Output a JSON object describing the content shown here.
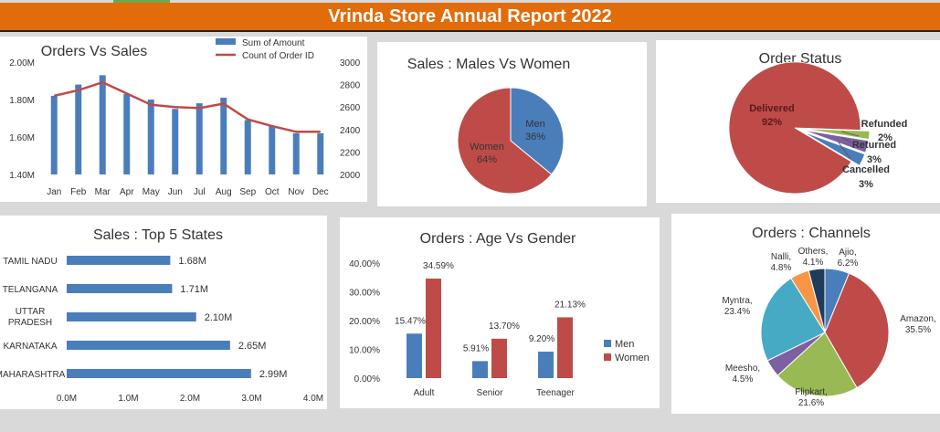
{
  "header": {
    "title": "Vrinda Store Annual Report 2022",
    "accent_color": "#e26b0a"
  },
  "colors": {
    "blue": "#4a7ebb",
    "red": "#be4b48",
    "green": "#98b954",
    "purple": "#7d60a0",
    "teal": "#46aac5",
    "orange": "#f79646",
    "navy": "#1f3c5c"
  },
  "chart_data": [
    {
      "id": "orders_vs_sales",
      "type": "bar",
      "title": "Orders Vs Sales",
      "categories": [
        "Jan",
        "Feb",
        "Mar",
        "Apr",
        "May",
        "Jun",
        "Jul",
        "Aug",
        "Sep",
        "Oct",
        "Nov",
        "Dec"
      ],
      "series": [
        {
          "name": "Sum of Amount",
          "type": "bar",
          "axis": "left",
          "values": [
            1.82,
            1.88,
            1.93,
            1.83,
            1.8,
            1.75,
            1.78,
            1.81,
            1.69,
            1.66,
            1.62,
            1.62
          ]
        },
        {
          "name": "Count of Order ID",
          "type": "line",
          "axis": "right",
          "values": [
            2700,
            2750,
            2820,
            2720,
            2620,
            2600,
            2590,
            2630,
            2490,
            2430,
            2380,
            2380
          ]
        }
      ],
      "ylim": [
        1.4,
        2.0
      ],
      "y_ticks": [
        "1.40M",
        "1.60M",
        "1.80M",
        "2.00M"
      ],
      "y2lim": [
        2000,
        3000
      ],
      "y2_ticks": [
        "2000",
        "2200",
        "2400",
        "2600",
        "2800",
        "3000"
      ],
      "legend": "top-right"
    },
    {
      "id": "sales_gender",
      "type": "pie",
      "title": "Sales : Males Vs Women",
      "labels": [
        "Men",
        "Women"
      ],
      "values": [
        36,
        64
      ],
      "display": [
        "36%",
        "64%"
      ]
    },
    {
      "id": "order_status",
      "type": "pie",
      "title": "Order Status",
      "labels": [
        "Delivered",
        "Refunded",
        "Returned",
        "Cancelled"
      ],
      "values": [
        92,
        2,
        3,
        3
      ],
      "display": [
        "92%",
        "2%",
        "3%",
        "3%"
      ]
    },
    {
      "id": "top_states",
      "type": "bar",
      "orientation": "horizontal",
      "title": "Sales : Top 5 States",
      "categories": [
        "TAMIL NADU",
        "TELANGANA",
        "UTTAR PRADESH",
        "KARNATAKA",
        "MAHARASHTRA"
      ],
      "values": [
        1.68,
        1.71,
        2.1,
        2.65,
        2.99
      ],
      "display": [
        "1.68M",
        "1.71M",
        "2.10M",
        "2.65M",
        "2.99M"
      ],
      "xlim": [
        0,
        4.0
      ],
      "x_ticks": [
        "0.0M",
        "1.0M",
        "2.0M",
        "3.0M",
        "4.0M"
      ]
    },
    {
      "id": "age_gender",
      "type": "bar",
      "title": "Orders : Age Vs Gender",
      "categories": [
        "Adult",
        "Senior",
        "Teenager"
      ],
      "series": [
        {
          "name": "Men",
          "values": [
            15.47,
            5.91,
            9.2
          ],
          "display": [
            "15.47%",
            "5.91%",
            "9.20%"
          ]
        },
        {
          "name": "Women",
          "values": [
            34.59,
            13.7,
            21.13
          ],
          "display": [
            "34.59%",
            "13.70%",
            "21.13%"
          ]
        }
      ],
      "ylim": [
        0,
        40
      ],
      "y_ticks": [
        "0.00%",
        "10.00%",
        "20.00%",
        "30.00%",
        "40.00%"
      ],
      "legend": "right"
    },
    {
      "id": "channels",
      "type": "pie",
      "title": "Orders : Channels",
      "labels": [
        "Ajio",
        "Amazon",
        "Flipkart",
        "Meesho",
        "Myntra",
        "Nalli",
        "Others"
      ],
      "values": [
        6.2,
        35.5,
        21.6,
        4.5,
        23.4,
        4.8,
        4.1
      ],
      "display": [
        "6.2%",
        "35.5%",
        "21.6%",
        "4.5%",
        "23.4%",
        "4.8%",
        "4.1%"
      ]
    }
  ]
}
